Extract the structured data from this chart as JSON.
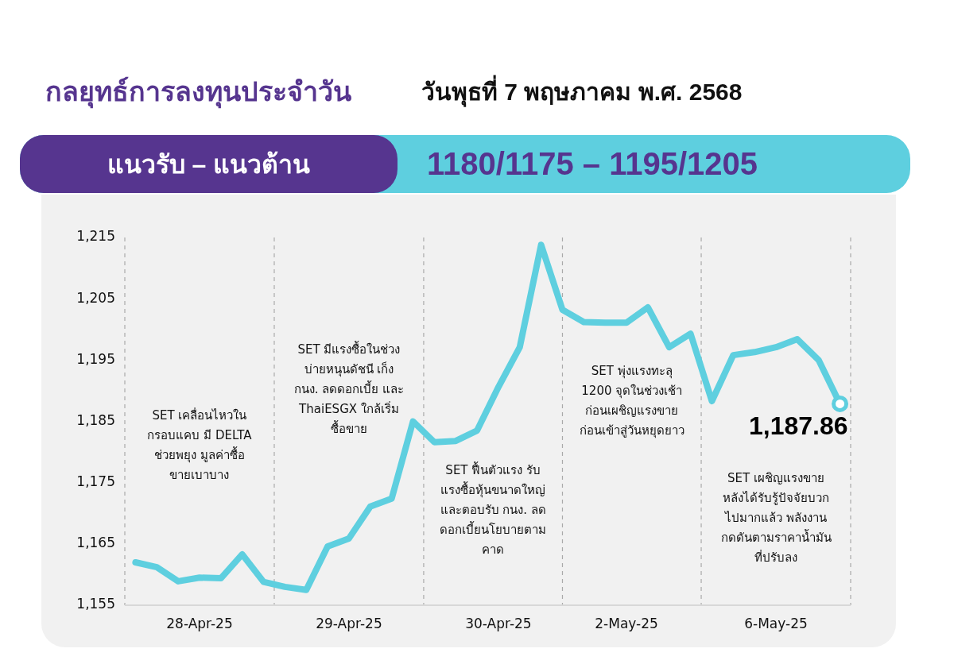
{
  "chart_data": {
    "type": "line",
    "title": "กลยุทธ์การลงทุนประจำวัน",
    "subtitle": "วันพุธที่ 7 พฤษภาคม พ.ศ. 2568",
    "annotations": [
      "แนวรับ – แนวต้าน",
      "1180/1175 – 1195/1205",
      "SET เคลื่อนไหวใน\nกรอบแคบ มี DELTA\nช่วยพยุง มูลค่าซื้อ\nขายเบาบาง",
      "SET มีแรงซื้อในช่วง\nบ่ายหนุนดัชนี เก็ง\nกนง. ลดดอกเบี้ย และ\nThaiESGX ใกล้เริ่ม\nซื้อขาย",
      "SET ฟื้นตัวแรง รับ\nแรงซื้อหุ้นขนาดใหญ่\nและตอบรับ กนง. ลด\nดอกเบี้ยนโยบายตาม\nคาด",
      "SET พุ่งแรงทะลุ\n1200 จุดในช่วงเช้า\nก่อนเผชิญแรงขาย\nก่อนเข้าสู่วันหยุดยาว",
      "SET เผชิญแรงขาย\nหลังได้รับรู้ปัจจัยบวก\nไปมากแล้ว พลังงาน\nกดดันตามราคาน้ำมัน\nที่ปรับลง"
    ],
    "categories": [
      null,
      null,
      null,
      "28-Apr-25",
      null,
      null,
      null,
      null,
      null,
      null,
      "29-Apr-25",
      null,
      null,
      null,
      null,
      null,
      null,
      "30-Apr-25",
      null,
      null,
      null,
      null,
      null,
      "2-May-25",
      null,
      null,
      null,
      null,
      null,
      null,
      "6-May-25",
      null,
      null,
      null
    ],
    "series": [
      {
        "color": "#5ecfdf",
        "values": [
          1162.0,
          1161.2,
          1158.9,
          1159.5,
          1159.4,
          1163.3,
          1158.8,
          1158.0,
          1157.5,
          1164.6,
          1165.9,
          1171.1,
          1172.4,
          1185.0,
          1181.6,
          1181.8,
          1183.5,
          1190.6,
          1197.1,
          1213.8,
          1203.2,
          1201.2,
          1201.1,
          1201.1,
          1203.6,
          1197.1,
          1199.3,
          1188.3,
          1195.8,
          1196.3,
          1197.1,
          1198.4,
          1195.0,
          1187.86
        ],
        "value_labels": [
          null,
          null,
          null,
          null,
          null,
          null,
          null,
          null,
          null,
          null,
          null,
          null,
          null,
          null,
          null,
          null,
          null,
          null,
          null,
          null,
          null,
          null,
          null,
          null,
          null,
          null,
          null,
          null,
          null,
          null,
          null,
          null,
          null,
          "1,187.86"
        ]
      }
    ],
    "ylim": [
      1155,
      1215
    ],
    "yticks": [
      {
        "value": 1155,
        "label": "1,155"
      },
      {
        "value": 1165,
        "label": "1,165"
      },
      {
        "value": 1175,
        "label": "1,175"
      },
      {
        "value": 1185,
        "label": "1,185"
      },
      {
        "value": 1195,
        "label": "1,195"
      },
      {
        "value": 1205,
        "label": "1,205"
      },
      {
        "value": 1215,
        "label": "1,215"
      }
    ],
    "grid": "x",
    "legend": false,
    "marker": "none",
    "line_style": "solid"
  }
}
